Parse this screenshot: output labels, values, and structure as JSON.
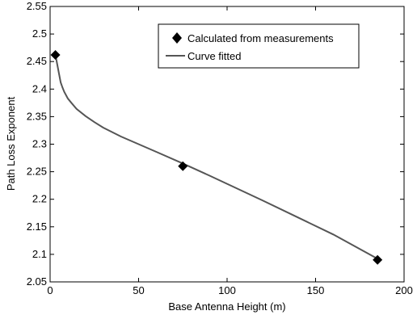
{
  "chart_data": {
    "type": "line",
    "title": "",
    "xlabel": "Base Antenna Height (m)",
    "ylabel": "Path Loss Exponent",
    "xlim": [
      0,
      200
    ],
    "ylim": [
      2.05,
      2.55
    ],
    "xticks": [
      0,
      50,
      100,
      150,
      200
    ],
    "yticks": [
      2.05,
      2.1,
      2.15,
      2.2,
      2.25,
      2.3,
      2.35,
      2.4,
      2.45,
      2.5,
      2.55
    ],
    "xtick_labels": [
      "0",
      "50",
      "100",
      "150",
      "200"
    ],
    "ytick_labels": [
      "2.05",
      "2.1",
      "2.15",
      "2.2",
      "2.25",
      "2.3",
      "2.35",
      "2.4",
      "2.45",
      "2.5",
      "2.55"
    ],
    "grid": false,
    "legend_position": "top-right",
    "series": [
      {
        "name": "Calculated from measurements",
        "kind": "scatter",
        "marker": "diamond",
        "color": "#000000",
        "x": [
          3,
          75,
          185
        ],
        "y": [
          2.462,
          2.26,
          2.09
        ]
      },
      {
        "name": "Curve fitted",
        "kind": "line",
        "color": "#555555",
        "x": [
          3,
          4,
          5,
          6,
          7,
          8,
          10,
          12,
          15,
          20,
          25,
          30,
          40,
          50,
          60,
          75,
          90,
          100,
          120,
          140,
          160,
          185
        ],
        "y": [
          2.462,
          2.445,
          2.428,
          2.412,
          2.403,
          2.395,
          2.383,
          2.375,
          2.364,
          2.351,
          2.34,
          2.33,
          2.314,
          2.3,
          2.286,
          2.265,
          2.243,
          2.228,
          2.198,
          2.167,
          2.136,
          2.092
        ]
      }
    ]
  }
}
